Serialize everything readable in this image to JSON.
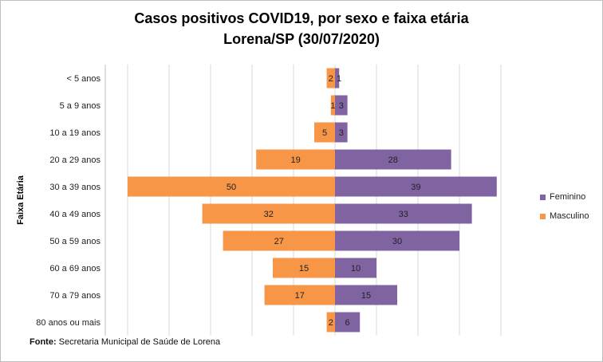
{
  "chart_data": {
    "type": "bar",
    "orientation": "horizontal-pyramid",
    "title_line1": "Casos positivos COVID19, por sexo e faixa etária",
    "title_line2": "Lorena/SP (30/07/2020)",
    "ylabel": "Faixa Etária",
    "categories": [
      "< 5 anos",
      "5 a 9 anos",
      "10 a 19 anos",
      "20 a 29 anos",
      "30 a 39 anos",
      "40 a 49 anos",
      "50 a 59 anos",
      "60 a 69 anos",
      "70 a 79 anos",
      "80 anos ou mais"
    ],
    "series": [
      {
        "name": "Feminino",
        "color": "#8064a2",
        "values": [
          1,
          3,
          3,
          28,
          39,
          33,
          30,
          10,
          15,
          6
        ]
      },
      {
        "name": "Masculino",
        "color": "#f79646",
        "values": [
          2,
          1,
          5,
          19,
          50,
          32,
          27,
          15,
          17,
          2
        ]
      }
    ],
    "xlim": [
      -50,
      45
    ],
    "grid": "vertical",
    "legend_position": "right"
  },
  "source": {
    "label": "Fonte:",
    "text": "Secretaria Municipal de Saúde de Lorena"
  }
}
